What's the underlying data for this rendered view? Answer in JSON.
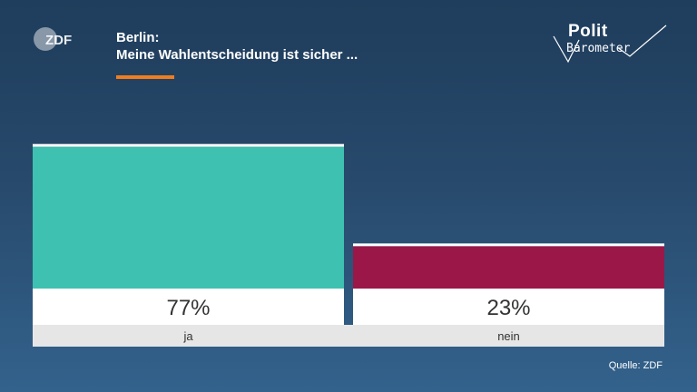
{
  "logo": {
    "text": "ZDF",
    "color": "#9aa8b6"
  },
  "header": {
    "title_line1": "Berlin:",
    "title_line2": "Meine Wahlentscheidung ist sicher ...",
    "accent_color": "#f07d1e"
  },
  "brand": {
    "polit": "Polit",
    "barometer": "Barometer"
  },
  "chart_data": {
    "type": "bar",
    "categories": [
      "ja",
      "nein"
    ],
    "values": [
      77,
      23
    ],
    "value_labels": [
      "77%",
      "23%"
    ],
    "colors": [
      "#3ec1b1",
      "#9b1748"
    ],
    "ylim": [
      0,
      100
    ],
    "unit": "%",
    "grid": false
  },
  "footer": {
    "source": "Quelle: ZDF"
  }
}
